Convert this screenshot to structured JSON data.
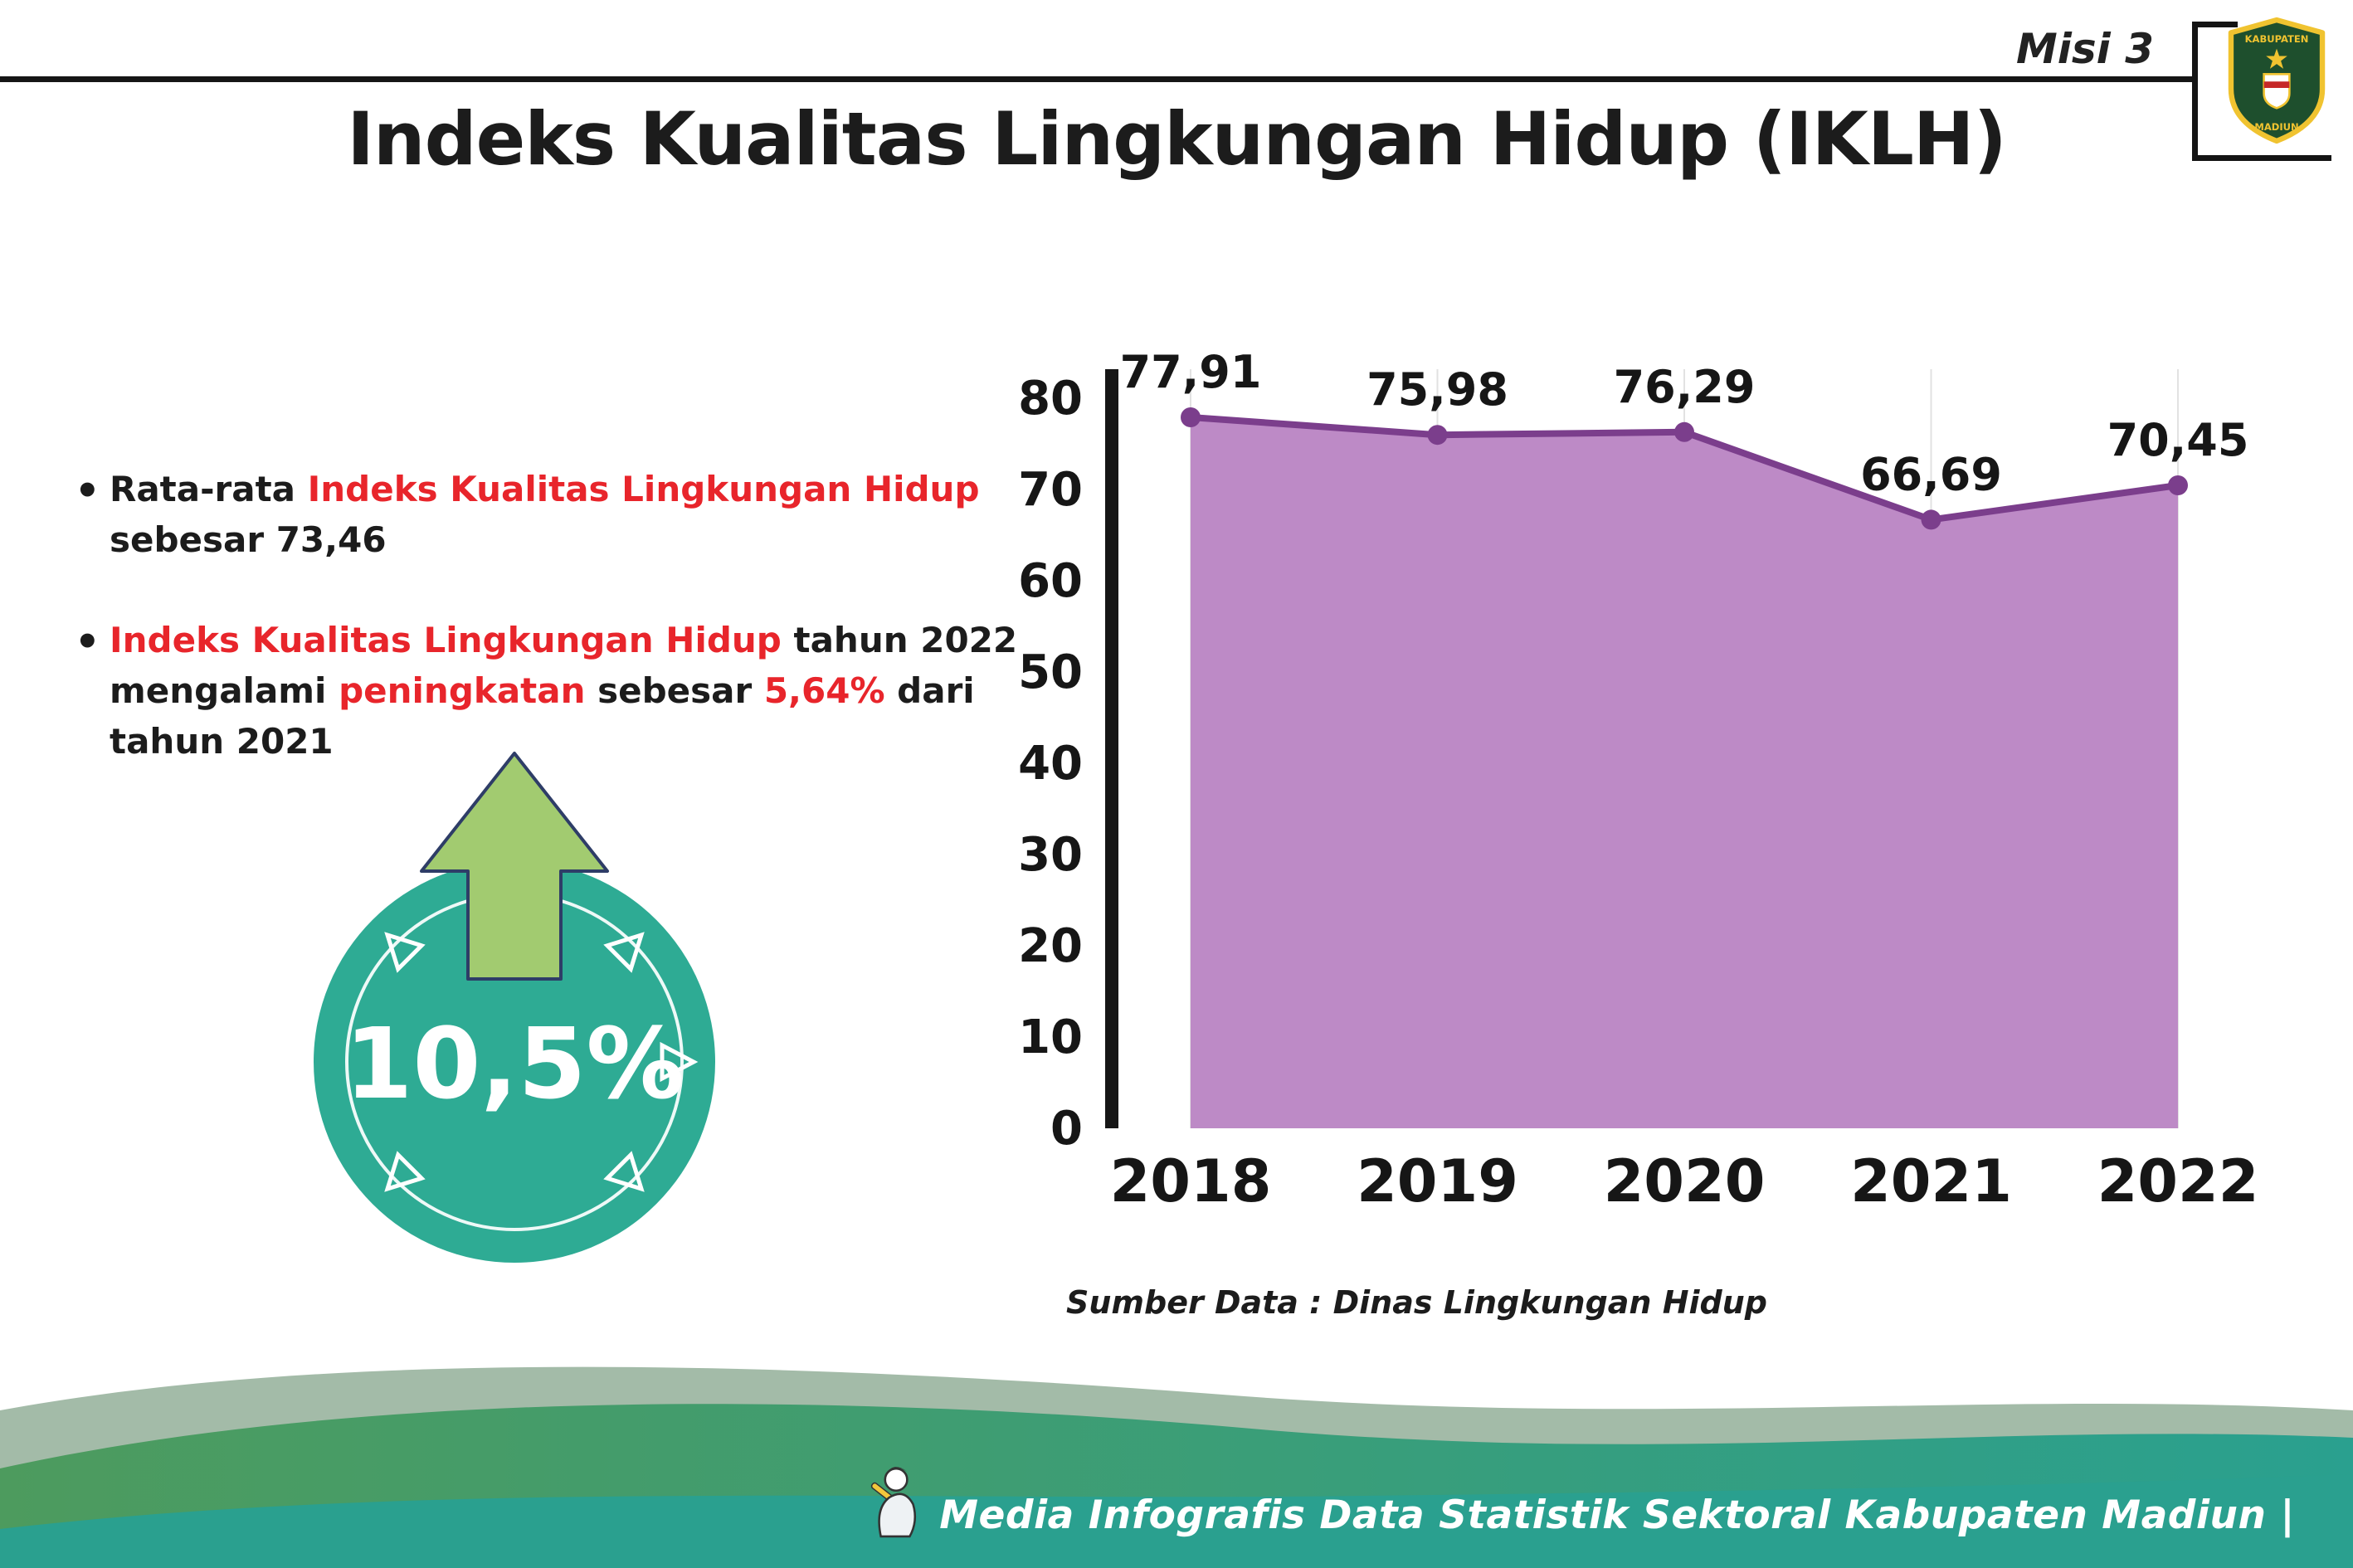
{
  "header": {
    "misi_label": "Misi 3",
    "title": "Indeks Kualitas Lingkungan Hidup (IKLH)",
    "logo_text_top": "KABUPATEN",
    "logo_text_bottom": "MADIUN"
  },
  "bullets": {
    "b1_s1": "Rata-rata ",
    "b1_s2": "Indeks Kualitas Lingkungan Hidup",
    "b1_s3": " sebesar 73,46",
    "b2_s1": "Indeks Kualitas Lingkungan Hidup",
    "b2_s2": " tahun 2022 mengalami ",
    "b2_s3": "peningkatan",
    "b2_s4": " sebesar ",
    "b2_s5": "5,64%",
    "b2_s6": " dari tahun 2021"
  },
  "badge": {
    "value": "10,5%",
    "circle_color": "#2eab94",
    "arrow_color": "#a2cb70",
    "arrow_outline": "#2e3d67"
  },
  "chart_data": {
    "type": "area",
    "categories": [
      "2018",
      "2019",
      "2020",
      "2021",
      "2022"
    ],
    "values": [
      77.91,
      75.98,
      76.29,
      66.69,
      70.45
    ],
    "value_labels": [
      "77,91",
      "75,98",
      "76,29",
      "66,69",
      "70,45"
    ],
    "title": "",
    "xlabel": "",
    "ylabel": "",
    "ylim": [
      0,
      80
    ],
    "yticks": [
      0,
      10,
      20,
      30,
      40,
      50,
      60,
      70,
      80
    ],
    "grid": "vertical-light",
    "legend": "none",
    "area_color": "#bd8ac6",
    "line_color": "#7b3e8c",
    "marker_color": "#7b3e8c",
    "axis_color": "#161616",
    "source_label": "Sumber Data : Dinas Lingkungan Hidup"
  },
  "footer": {
    "text": "Media Infografis Data Statistik Sektoral Kabupaten Madiun |"
  },
  "colors": {
    "accent_red": "#e8252b",
    "text_dark": "#1c1c1c",
    "footer_teal": "#2aa08f",
    "footer_green": "#4d9b5e",
    "footer_sage": "#a3bba8"
  }
}
